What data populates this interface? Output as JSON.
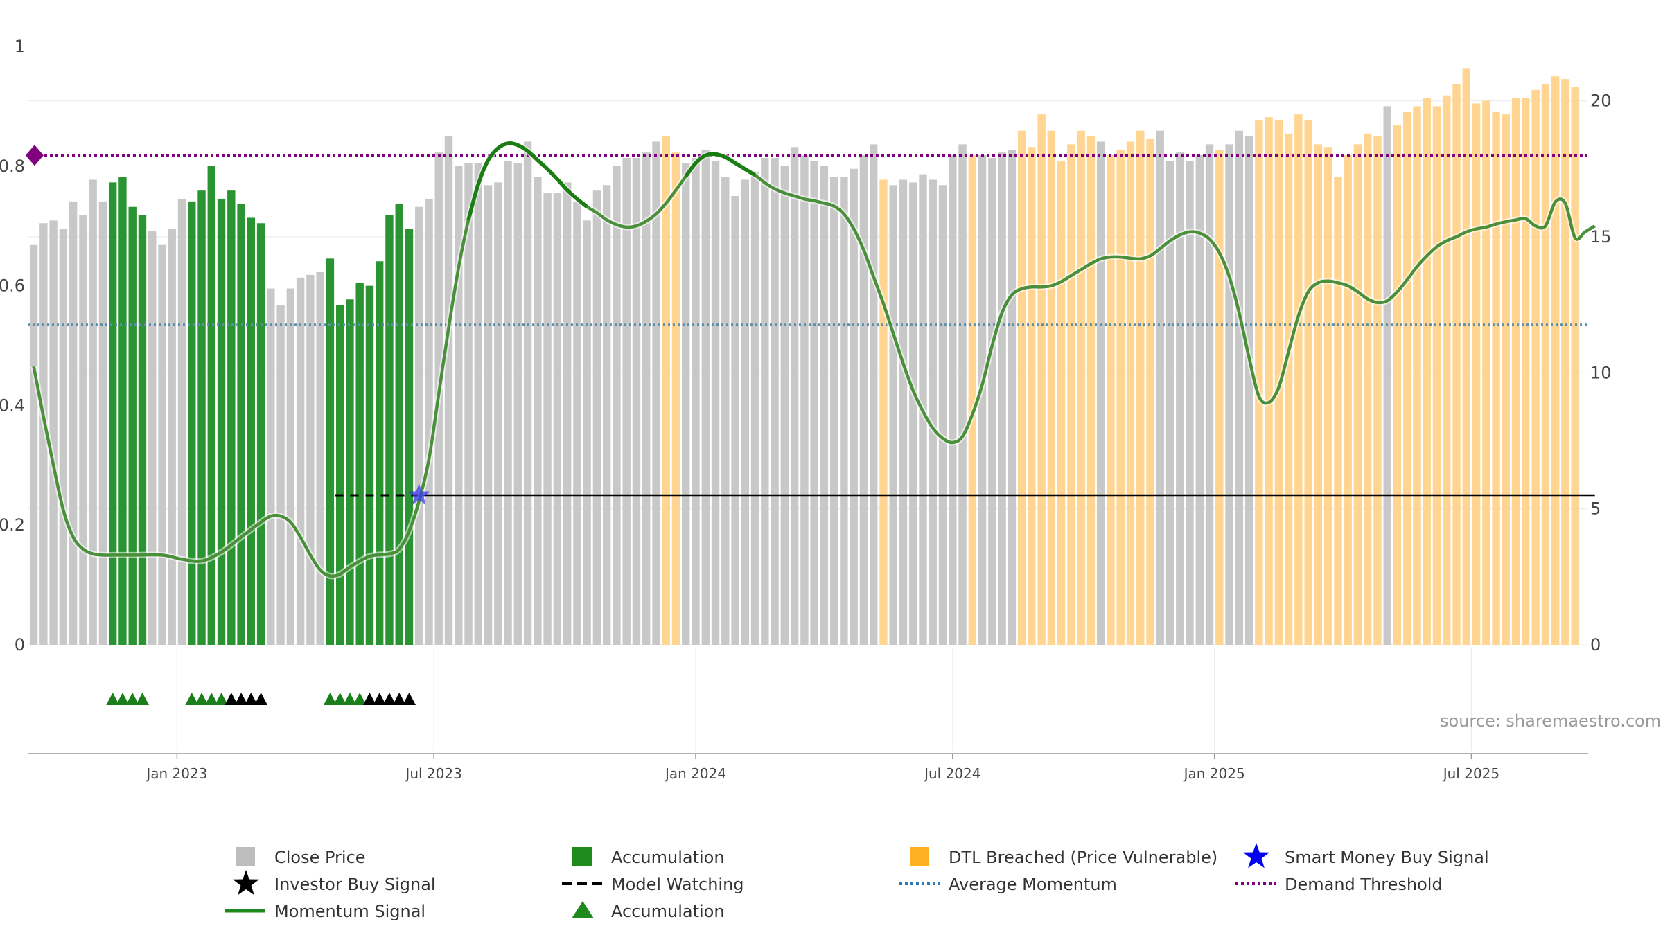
{
  "chart_data": {
    "type": "bar",
    "title": "",
    "xlabel": "",
    "ylabel": "",
    "ylim_left": [
      0,
      1
    ],
    "ylim_right": [
      0,
      22
    ],
    "left_ticks": [
      "0",
      "0.2",
      "0.4",
      "0.6",
      "0.8",
      "1"
    ],
    "right_ticks": [
      "0",
      "5",
      "10",
      "15",
      "20"
    ],
    "x_ticks": [
      {
        "label": "Jan 2023",
        "index": 14.5
      },
      {
        "label": "Jul 2023",
        "index": 40.5
      },
      {
        "label": "Jan 2024",
        "index": 67
      },
      {
        "label": "Jul 2024",
        "index": 93
      },
      {
        "label": "Jan 2025",
        "index": 119.5
      },
      {
        "label": "Jul 2025",
        "index": 145.5
      }
    ],
    "close_price": [
      14.7,
      15.5,
      15.6,
      15.3,
      16.3,
      15.8,
      17.1,
      16.3,
      17.0,
      17.2,
      16.1,
      15.8,
      15.2,
      14.7,
      15.3,
      16.4,
      16.3,
      16.7,
      17.6,
      16.4,
      16.7,
      16.2,
      15.7,
      15.5,
      13.1,
      12.5,
      13.1,
      13.5,
      13.6,
      13.7,
      14.2,
      12.5,
      12.7,
      13.3,
      13.2,
      14.1,
      15.8,
      16.2,
      15.3,
      16.1,
      16.4,
      18.1,
      18.7,
      17.6,
      17.7,
      17.7,
      16.9,
      17.0,
      17.8,
      17.7,
      18.5,
      17.2,
      16.6,
      16.6,
      17.0,
      16.3,
      15.6,
      16.7,
      16.9,
      17.6,
      17.9,
      17.9,
      18.1,
      18.5,
      18.7,
      18.1,
      17.7,
      17.9,
      18.2,
      17.8,
      17.2,
      16.5,
      17.1,
      17.4,
      17.9,
      17.9,
      17.6,
      18.3,
      18.0,
      17.8,
      17.6,
      17.2,
      17.2,
      17.5,
      18.0,
      18.4,
      17.1,
      16.9,
      17.1,
      17.0,
      17.3,
      17.1,
      16.9,
      18.0,
      18.4,
      18.0,
      18.0,
      17.9,
      18.1,
      18.2,
      18.9,
      18.3,
      19.5,
      18.9,
      17.8,
      18.4,
      18.9,
      18.7,
      18.5,
      18.0,
      18.2,
      18.5,
      18.9,
      18.6,
      18.9,
      17.8,
      18.1,
      17.8,
      18.0,
      18.4,
      18.2,
      18.4,
      18.9,
      18.7,
      19.3,
      19.4,
      19.3,
      18.8,
      19.5,
      19.3,
      18.4,
      18.3,
      17.2,
      18.0,
      18.4,
      18.8,
      18.7,
      19.8,
      19.1,
      19.6,
      19.8,
      20.1,
      19.8,
      20.2,
      20.6,
      21.2,
      19.9,
      20.0,
      19.6,
      19.5,
      20.1,
      20.1,
      20.4,
      20.6,
      20.9,
      20.8,
      20.5
    ],
    "bar_state": "ggggggggccccgggggggcccccggggggggccccggggggggggggggggggggggggggggggggggggggggggggggggggggggggggggggggggggggggggggggggggggggggggggggggggggggggggggggggggggggggg",
    "bar_state_ranges": [
      {
        "from": 8,
        "to": 11,
        "state": "accumulation"
      },
      {
        "from": 16,
        "to": 23,
        "state": "accumulation"
      },
      {
        "from": 30,
        "to": 38,
        "state": "accumulation"
      },
      {
        "from": 64,
        "to": 65,
        "state": "dtl"
      },
      {
        "from": 86,
        "to": 86,
        "state": "dtl"
      },
      {
        "from": 95,
        "to": 95,
        "state": "dtl"
      },
      {
        "from": 100,
        "to": 107,
        "state": "dtl"
      },
      {
        "from": 109,
        "to": 113,
        "state": "dtl"
      },
      {
        "from": 120,
        "to": 120,
        "state": "dtl"
      },
      {
        "from": 124,
        "to": 136,
        "state": "dtl"
      },
      {
        "from": 138,
        "to": 157,
        "state": "dtl"
      }
    ],
    "momentum_points": [
      [
        0,
        0.465
      ],
      [
        1,
        0.38
      ],
      [
        2,
        0.3
      ],
      [
        3,
        0.225
      ],
      [
        4,
        0.18
      ],
      [
        5,
        0.16
      ],
      [
        6,
        0.152
      ],
      [
        7,
        0.15
      ],
      [
        8,
        0.15
      ],
      [
        10,
        0.15
      ],
      [
        13,
        0.15
      ],
      [
        15,
        0.143
      ],
      [
        17,
        0.14
      ],
      [
        19,
        0.155
      ],
      [
        21,
        0.18
      ],
      [
        23,
        0.205
      ],
      [
        24,
        0.215
      ],
      [
        25,
        0.215
      ],
      [
        26,
        0.205
      ],
      [
        27,
        0.18
      ],
      [
        28,
        0.15
      ],
      [
        29,
        0.125
      ],
      [
        30,
        0.115
      ],
      [
        31,
        0.118
      ],
      [
        32,
        0.13
      ],
      [
        34,
        0.148
      ],
      [
        36,
        0.152
      ],
      [
        37,
        0.16
      ],
      [
        38,
        0.19
      ],
      [
        39,
        0.24
      ],
      [
        40,
        0.31
      ],
      [
        41,
        0.42
      ],
      [
        42,
        0.53
      ],
      [
        43,
        0.63
      ],
      [
        44,
        0.71
      ],
      [
        45,
        0.77
      ],
      [
        46,
        0.81
      ],
      [
        47,
        0.83
      ],
      [
        48,
        0.838
      ],
      [
        49,
        0.835
      ],
      [
        50,
        0.825
      ],
      [
        51,
        0.81
      ],
      [
        52,
        0.795
      ],
      [
        53,
        0.778
      ],
      [
        54,
        0.76
      ],
      [
        55,
        0.745
      ],
      [
        56,
        0.732
      ],
      [
        57,
        0.722
      ],
      [
        58,
        0.71
      ],
      [
        59,
        0.702
      ],
      [
        60,
        0.698
      ],
      [
        61,
        0.7
      ],
      [
        62,
        0.708
      ],
      [
        63,
        0.72
      ],
      [
        64,
        0.738
      ],
      [
        65,
        0.76
      ],
      [
        66,
        0.783
      ],
      [
        67,
        0.805
      ],
      [
        68,
        0.818
      ],
      [
        69,
        0.82
      ],
      [
        70,
        0.815
      ],
      [
        71,
        0.805
      ],
      [
        72,
        0.795
      ],
      [
        73,
        0.785
      ],
      [
        74,
        0.772
      ],
      [
        75,
        0.762
      ],
      [
        76,
        0.755
      ],
      [
        77,
        0.75
      ],
      [
        78,
        0.745
      ],
      [
        79,
        0.742
      ],
      [
        80,
        0.738
      ],
      [
        81,
        0.733
      ],
      [
        82,
        0.72
      ],
      [
        83,
        0.695
      ],
      [
        84,
        0.66
      ],
      [
        85,
        0.615
      ],
      [
        86,
        0.57
      ],
      [
        87,
        0.52
      ],
      [
        88,
        0.47
      ],
      [
        89,
        0.425
      ],
      [
        90,
        0.39
      ],
      [
        91,
        0.362
      ],
      [
        92,
        0.345
      ],
      [
        93,
        0.338
      ],
      [
        94,
        0.348
      ],
      [
        95,
        0.385
      ],
      [
        96,
        0.435
      ],
      [
        97,
        0.5
      ],
      [
        98,
        0.555
      ],
      [
        99,
        0.585
      ],
      [
        100,
        0.595
      ],
      [
        101,
        0.598
      ],
      [
        102,
        0.598
      ],
      [
        103,
        0.6
      ],
      [
        104,
        0.607
      ],
      [
        105,
        0.617
      ],
      [
        106,
        0.627
      ],
      [
        107,
        0.637
      ],
      [
        108,
        0.645
      ],
      [
        109,
        0.648
      ],
      [
        110,
        0.648
      ],
      [
        111,
        0.646
      ],
      [
        112,
        0.645
      ],
      [
        113,
        0.65
      ],
      [
        114,
        0.662
      ],
      [
        115,
        0.675
      ],
      [
        116,
        0.685
      ],
      [
        117,
        0.69
      ],
      [
        118,
        0.688
      ],
      [
        119,
        0.678
      ],
      [
        120,
        0.655
      ],
      [
        121,
        0.615
      ],
      [
        122,
        0.555
      ],
      [
        123,
        0.48
      ],
      [
        124,
        0.415
      ],
      [
        125,
        0.405
      ],
      [
        126,
        0.43
      ],
      [
        127,
        0.49
      ],
      [
        128,
        0.55
      ],
      [
        129,
        0.59
      ],
      [
        130,
        0.605
      ],
      [
        131,
        0.608
      ],
      [
        132,
        0.605
      ],
      [
        133,
        0.6
      ],
      [
        134,
        0.59
      ],
      [
        135,
        0.578
      ],
      [
        136,
        0.572
      ],
      [
        137,
        0.575
      ],
      [
        138,
        0.59
      ],
      [
        139,
        0.61
      ],
      [
        140,
        0.632
      ],
      [
        141,
        0.65
      ],
      [
        142,
        0.665
      ],
      [
        143,
        0.675
      ],
      [
        144,
        0.682
      ],
      [
        145,
        0.69
      ],
      [
        146,
        0.695
      ],
      [
        147,
        0.698
      ],
      [
        148,
        0.703
      ],
      [
        149,
        0.707
      ],
      [
        150,
        0.71
      ],
      [
        151,
        0.712
      ],
      [
        152,
        0.7
      ],
      [
        153,
        0.7
      ],
      [
        154,
        0.74
      ],
      [
        155,
        0.738
      ],
      [
        156,
        0.68
      ],
      [
        157,
        0.69
      ],
      [
        158,
        0.7
      ]
    ],
    "momentum_highlight_ranges": [
      [
        44,
        56
      ],
      [
        66,
        73
      ]
    ],
    "average_momentum": 0.535,
    "demand_threshold": 0.818,
    "model_watching": {
      "level": 0.25,
      "dashed_from": 30.5,
      "dashed_to": 39,
      "solid_from": 39,
      "solid_to": 158
    },
    "smart_money_signal": {
      "index": 39,
      "value": 0.25
    },
    "threshold_marker": {
      "index": 0.3,
      "value": 0.818
    },
    "signal_triangles": [
      {
        "index": 8,
        "kind": "accumulation"
      },
      {
        "index": 9,
        "kind": "accumulation"
      },
      {
        "index": 10,
        "kind": "accumulation"
      },
      {
        "index": 11,
        "kind": "accumulation"
      },
      {
        "index": 16,
        "kind": "accumulation"
      },
      {
        "index": 17,
        "kind": "accumulation"
      },
      {
        "index": 18,
        "kind": "accumulation"
      },
      {
        "index": 19,
        "kind": "accumulation"
      },
      {
        "index": 20,
        "kind": "investor"
      },
      {
        "index": 21,
        "kind": "investor"
      },
      {
        "index": 22,
        "kind": "investor"
      },
      {
        "index": 23,
        "kind": "investor"
      },
      {
        "index": 30,
        "kind": "accumulation"
      },
      {
        "index": 31,
        "kind": "accumulation"
      },
      {
        "index": 32,
        "kind": "accumulation"
      },
      {
        "index": 33,
        "kind": "accumulation"
      },
      {
        "index": 34,
        "kind": "investor"
      },
      {
        "index": 35,
        "kind": "investor"
      },
      {
        "index": 36,
        "kind": "investor"
      },
      {
        "index": 37,
        "kind": "investor"
      },
      {
        "index": 38,
        "kind": "investor"
      }
    ],
    "colors": {
      "close_price": "#c8c8c8",
      "accumulation": "#2a9432",
      "dtl": "#ffd591",
      "momentum": "#4a8f3a",
      "momentum_highlight": "#1b7e12",
      "average_momentum": "#5b8ea8",
      "demand_threshold": "#800080",
      "model_watching": "#000000",
      "smart_money": "#3a3ae6",
      "triangle_accumulation": "#1a7f1a",
      "triangle_investor": "#000000"
    },
    "legend": [
      {
        "label": "Close Price",
        "symbol": "square",
        "color": "#bdbdbd"
      },
      {
        "label": "Accumulation",
        "symbol": "square",
        "color": "#1e8a1e"
      },
      {
        "label": "DTL Breached (Price Vulnerable)",
        "symbol": "square",
        "color": "#ffb020"
      },
      {
        "label": "Smart Money Buy Signal",
        "symbol": "star",
        "color": "#0000ee"
      },
      {
        "label": "Investor Buy Signal",
        "symbol": "star",
        "color": "#000000"
      },
      {
        "label": "Model Watching",
        "symbol": "dash",
        "color": "#000000"
      },
      {
        "label": "Average Momentum",
        "symbol": "dot",
        "color": "#2f78b4"
      },
      {
        "label": "Demand Threshold",
        "symbol": "dot",
        "color": "#800080"
      },
      {
        "label": "Momentum Signal",
        "symbol": "line",
        "color": "#1e8a1e"
      },
      {
        "label": "Accumulation",
        "symbol": "triangle",
        "color": "#1e8a1e"
      }
    ],
    "source": "source: sharemaestro.com"
  }
}
